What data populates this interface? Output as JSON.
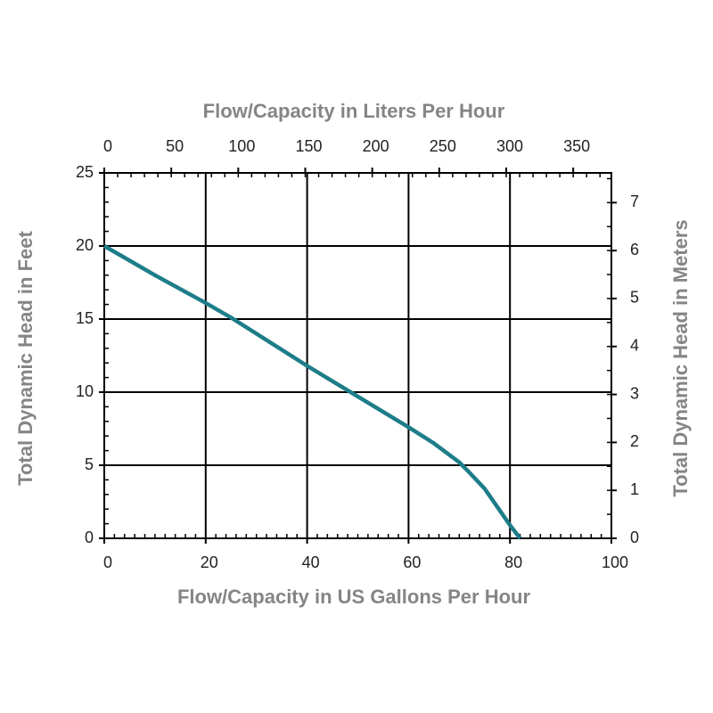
{
  "chart_data": {
    "type": "line",
    "x_title": "Flow/Capacity in US Gallons Per Hour",
    "x2_title": "Flow/Capacity in Liters Per Hour",
    "y_title": "Total Dynamic Head in Feet",
    "y2_title": "Total Dynamic Head in Meters",
    "x": [
      0,
      10,
      20,
      25,
      30,
      40,
      50,
      60,
      65,
      70,
      72,
      75,
      78,
      80,
      82
    ],
    "values": [
      20,
      18,
      16.1,
      15.1,
      14,
      11.8,
      9.7,
      7.6,
      6.5,
      5.2,
      4.5,
      3.4,
      1.9,
      0.9,
      0
    ],
    "color": "#1d7d88",
    "xlim": [
      0,
      100
    ],
    "xticks": [
      0,
      20,
      40,
      60,
      80,
      100
    ],
    "x2lim": [
      0,
      378.5
    ],
    "x2ticks": [
      0,
      50,
      100,
      150,
      200,
      250,
      300,
      350
    ],
    "ylim": [
      0,
      25
    ],
    "yticks": [
      0,
      5,
      10,
      15,
      20,
      25
    ],
    "y2lim": [
      0,
      7.62
    ],
    "y2ticks": [
      0,
      1,
      2,
      3,
      4,
      5,
      6,
      7
    ],
    "minor_ticks": {
      "x": 2,
      "x2": 10,
      "y": 1,
      "y2": 0.5
    },
    "grid": true
  }
}
